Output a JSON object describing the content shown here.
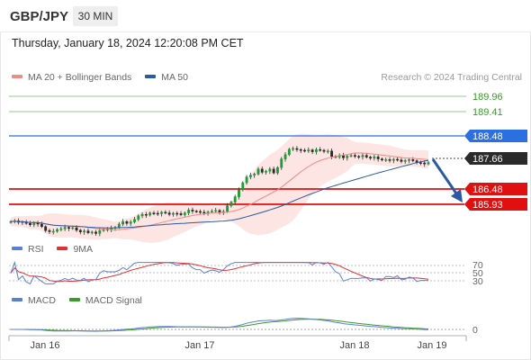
{
  "header": {
    "symbol": "GBP/JPY",
    "timeframe": "30 MIN",
    "datetime": "Thursday, January 18, 2024 12:20:08 PM CET"
  },
  "legends": {
    "main": [
      {
        "label": "MA 20 + Bollinger Bands",
        "color": "#f08a84"
      },
      {
        "label": "MA 50",
        "color": "#2b5aa5"
      }
    ],
    "rsi": [
      {
        "label": "RSI",
        "color": "#5b7fd6"
      },
      {
        "label": "9MA",
        "color": "#e03030"
      }
    ],
    "macd": [
      {
        "label": "MACD",
        "color": "#5b7fd6"
      },
      {
        "label": "MACD Signal",
        "color": "#3a9a2a"
      }
    ]
  },
  "copyright": "Research © 2024 Trading Central",
  "levels": {
    "resistance2": {
      "value": "189.96",
      "color": "#3a9a2a"
    },
    "resistance1": {
      "value": "189.41",
      "color": "#3a9a2a"
    },
    "pivot": {
      "value": "188.48",
      "color": "#2b6fe0"
    },
    "last_price": {
      "value": "187.66",
      "color": "#2a2a2a"
    },
    "support1": {
      "value": "186.48",
      "color": "#e01010"
    },
    "support2": {
      "value": "185.93",
      "color": "#e01010"
    }
  },
  "rsi_levels": [
    "70",
    "50",
    "30"
  ],
  "macd_level": "0",
  "x_axis": [
    "Jan 16",
    "Jan 17",
    "Jan 18",
    "Jan 19"
  ],
  "chart_data": {
    "type": "line",
    "y_range_main": [
      185.7,
      190.2
    ],
    "closes": [
      186.02,
      186.04,
      186.0,
      186.01,
      185.97,
      185.93,
      185.99,
      185.95,
      185.88,
      185.77,
      185.74,
      185.75,
      185.8,
      185.82,
      185.86,
      185.83,
      185.85,
      185.78,
      185.73,
      185.76,
      185.71,
      185.73,
      185.69,
      185.77,
      185.81,
      185.79,
      185.84,
      185.86,
      185.95,
      186.02,
      185.97,
      186.01,
      186.08,
      186.18,
      186.22,
      186.2,
      186.26,
      186.25,
      186.24,
      186.28,
      186.26,
      186.22,
      186.25,
      186.24,
      186.21,
      186.26,
      186.34,
      186.31,
      186.3,
      186.28,
      186.26,
      186.29,
      186.31,
      186.33,
      186.28,
      186.3,
      186.46,
      186.56,
      186.71,
      186.9,
      187.1,
      187.26,
      187.31,
      187.34,
      187.48,
      187.39,
      187.42,
      187.48,
      187.37,
      187.52,
      187.76,
      187.88,
      188.03,
      188.05,
      188.02,
      188.0,
      187.98,
      188.01,
      187.96,
      188.02,
      188.0,
      187.97,
      187.98,
      187.83,
      187.81,
      187.86,
      187.79,
      187.84,
      187.86,
      187.83,
      187.82,
      187.86,
      187.81,
      187.78,
      187.82,
      187.76,
      187.73,
      187.74,
      187.72,
      187.75,
      187.73,
      187.69,
      187.72,
      187.74,
      187.71,
      187.66,
      187.65,
      187.62,
      187.66
    ]
  }
}
